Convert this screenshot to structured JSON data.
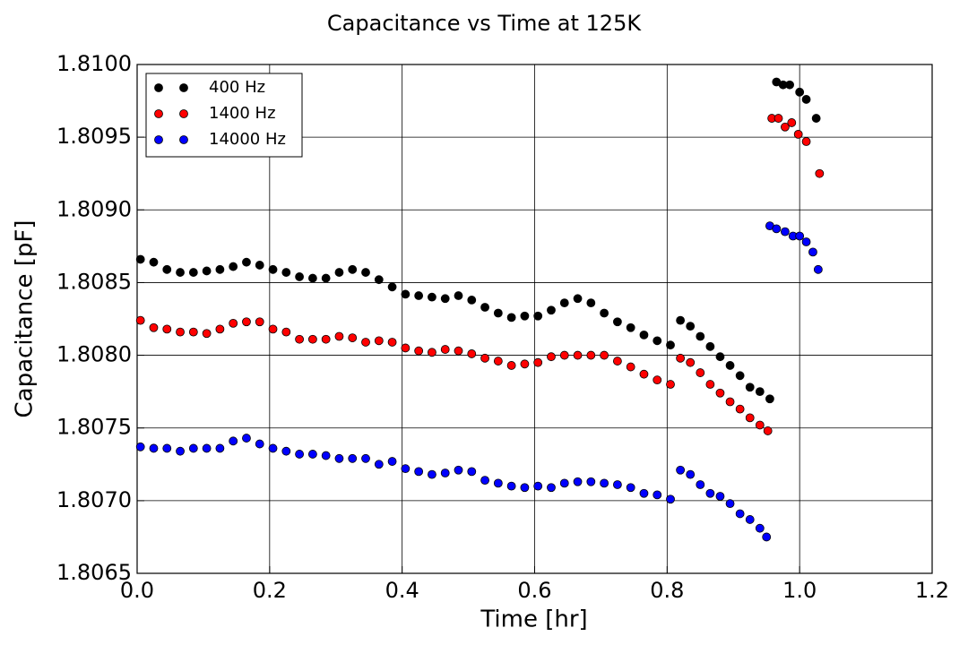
{
  "chart_data": {
    "type": "scatter",
    "title": "Capacitance vs Time at 125K",
    "x_label": "Time [hr]",
    "y_label": "Capacitance [pF]",
    "xlim": [
      0,
      1.2
    ],
    "xticks": [
      {
        "value": 0,
        "label": "0.0"
      },
      0.2,
      0.4,
      0.6,
      0.8,
      {
        "value": 1,
        "label": "1.0"
      },
      1.2
    ],
    "ylim": [
      1.8065,
      1.81
    ],
    "yticks": [
      1.8065,
      {
        "value": 1.807,
        "label": "1.8070"
      },
      1.8075,
      {
        "value": 1.808,
        "label": "1.8080"
      },
      1.8085,
      {
        "value": 1.809,
        "label": "1.8090"
      },
      1.8095,
      {
        "value": 1.81,
        "label": "1.8100"
      }
    ],
    "grid": true,
    "legend": "upper left",
    "series": [
      {
        "name": "400 Hz",
        "color": "#000000",
        "x": [
          0.005,
          0.025,
          0.045,
          0.065,
          0.085,
          0.105,
          0.125,
          0.145,
          0.165,
          0.185,
          0.205,
          0.225,
          0.245,
          0.265,
          0.285,
          0.305,
          0.325,
          0.345,
          0.365,
          0.385,
          0.405,
          0.425,
          0.445,
          0.465,
          0.485,
          0.505,
          0.525,
          0.545,
          0.565,
          0.585,
          0.605,
          0.625,
          0.645,
          0.665,
          0.685,
          0.705,
          0.725,
          0.745,
          0.765,
          0.785,
          0.805,
          0.82,
          0.835,
          0.85,
          0.865,
          0.88,
          0.895,
          0.91,
          0.925,
          0.94,
          0.955,
          0.965,
          0.975,
          0.985,
          1.0,
          1.01,
          1.025
        ],
        "values": [
          1.80866,
          1.80864,
          1.80859,
          1.80857,
          1.80857,
          1.80858,
          1.80859,
          1.80861,
          1.80864,
          1.80862,
          1.80859,
          1.80857,
          1.80854,
          1.80853,
          1.80853,
          1.80857,
          1.80859,
          1.80857,
          1.80852,
          1.80847,
          1.80842,
          1.80841,
          1.8084,
          1.80839,
          1.80841,
          1.80838,
          1.80833,
          1.80829,
          1.80826,
          1.80827,
          1.80827,
          1.80831,
          1.80836,
          1.80839,
          1.80836,
          1.80829,
          1.80823,
          1.80819,
          1.80814,
          1.8081,
          1.80807,
          1.80824,
          1.8082,
          1.80813,
          1.80806,
          1.80799,
          1.80793,
          1.80786,
          1.80778,
          1.80775,
          1.8077,
          1.80988,
          1.80986,
          1.80986,
          1.80981,
          1.80976,
          1.80963
        ]
      },
      {
        "name": "1400 Hz",
        "color": "#ff0000",
        "x": [
          0.005,
          0.025,
          0.045,
          0.065,
          0.085,
          0.105,
          0.125,
          0.145,
          0.165,
          0.185,
          0.205,
          0.225,
          0.245,
          0.265,
          0.285,
          0.305,
          0.325,
          0.345,
          0.365,
          0.385,
          0.405,
          0.425,
          0.445,
          0.465,
          0.485,
          0.505,
          0.525,
          0.545,
          0.565,
          0.585,
          0.605,
          0.625,
          0.645,
          0.665,
          0.685,
          0.705,
          0.725,
          0.745,
          0.765,
          0.785,
          0.805,
          0.82,
          0.835,
          0.85,
          0.865,
          0.88,
          0.895,
          0.91,
          0.925,
          0.94,
          0.952,
          0.958,
          0.968,
          0.978,
          0.988,
          0.998,
          1.01,
          1.03
        ],
        "values": [
          1.80824,
          1.80819,
          1.80818,
          1.80816,
          1.80816,
          1.80815,
          1.80818,
          1.80822,
          1.80823,
          1.80823,
          1.80818,
          1.80816,
          1.80811,
          1.80811,
          1.80811,
          1.80813,
          1.80812,
          1.80809,
          1.8081,
          1.80809,
          1.80805,
          1.80803,
          1.80802,
          1.80804,
          1.80803,
          1.80801,
          1.80798,
          1.80796,
          1.80793,
          1.80794,
          1.80795,
          1.80799,
          1.808,
          1.808,
          1.808,
          1.808,
          1.80796,
          1.80792,
          1.80787,
          1.80783,
          1.8078,
          1.80798,
          1.80795,
          1.80788,
          1.8078,
          1.80774,
          1.80768,
          1.80763,
          1.80757,
          1.80752,
          1.80748,
          1.80963,
          1.80963,
          1.80957,
          1.8096,
          1.80952,
          1.80947,
          1.80925
        ]
      },
      {
        "name": "14000 Hz",
        "color": "#0000ff",
        "x": [
          0.005,
          0.025,
          0.045,
          0.065,
          0.085,
          0.105,
          0.125,
          0.145,
          0.165,
          0.185,
          0.205,
          0.225,
          0.245,
          0.265,
          0.285,
          0.305,
          0.325,
          0.345,
          0.365,
          0.385,
          0.405,
          0.425,
          0.445,
          0.465,
          0.485,
          0.505,
          0.525,
          0.545,
          0.565,
          0.585,
          0.605,
          0.625,
          0.645,
          0.665,
          0.685,
          0.705,
          0.725,
          0.745,
          0.765,
          0.785,
          0.805,
          0.82,
          0.835,
          0.85,
          0.865,
          0.88,
          0.895,
          0.91,
          0.925,
          0.94,
          0.95,
          0.955,
          0.965,
          0.978,
          0.99,
          1.0,
          1.01,
          1.02,
          1.028
        ],
        "values": [
          1.80737,
          1.80736,
          1.80736,
          1.80734,
          1.80736,
          1.80736,
          1.80736,
          1.80741,
          1.80743,
          1.80739,
          1.80736,
          1.80734,
          1.80732,
          1.80732,
          1.80731,
          1.80729,
          1.80729,
          1.80729,
          1.80725,
          1.80727,
          1.80722,
          1.8072,
          1.80718,
          1.80719,
          1.80721,
          1.8072,
          1.80714,
          1.80712,
          1.8071,
          1.80709,
          1.8071,
          1.80709,
          1.80712,
          1.80713,
          1.80713,
          1.80712,
          1.80711,
          1.80709,
          1.80705,
          1.80704,
          1.80701,
          1.80721,
          1.80718,
          1.80711,
          1.80705,
          1.80703,
          1.80698,
          1.80691,
          1.80687,
          1.80681,
          1.80675,
          1.80889,
          1.80887,
          1.80885,
          1.80882,
          1.80882,
          1.80878,
          1.80871,
          1.80859
        ]
      }
    ]
  }
}
